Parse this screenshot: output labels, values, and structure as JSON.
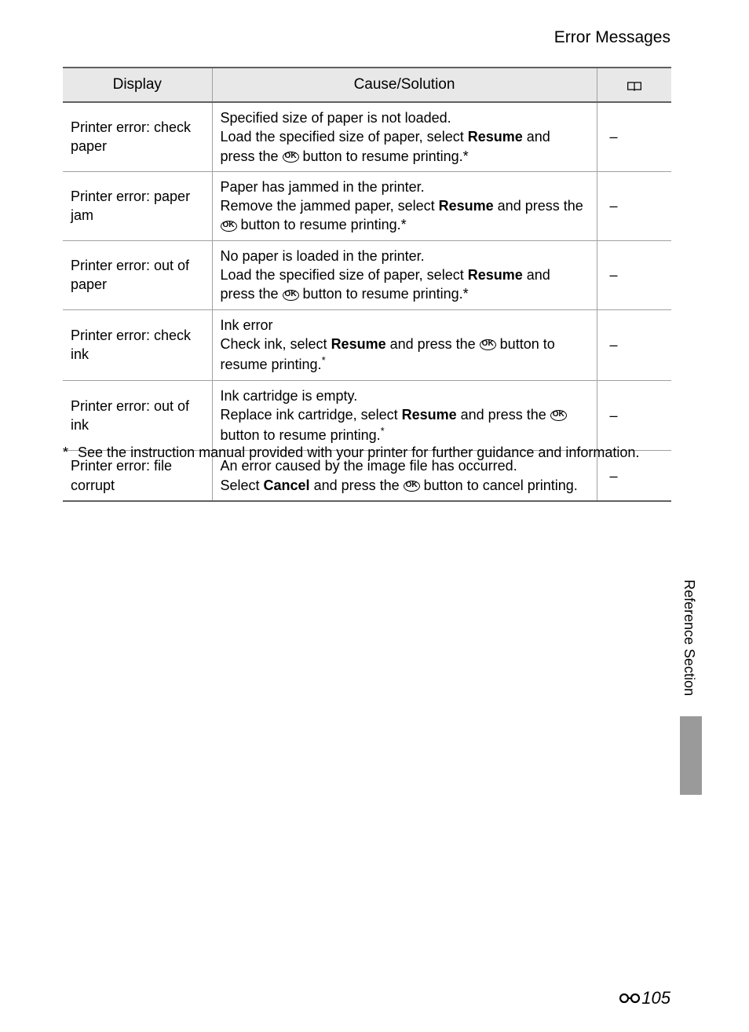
{
  "header": {
    "title": "Error Messages"
  },
  "table": {
    "headers": {
      "display": "Display",
      "cause": "Cause/Solution",
      "reference": ""
    },
    "rows": [
      {
        "display": "Printer error: check paper",
        "cause_html": "Specified size of paper is not loaded.<br>Load the specified size of paper, select <span class='bold'>Resume</span> and press the <span class='ok-button'>OK</span> button to resume printing.*",
        "reference": "–"
      },
      {
        "display": "Printer error: paper jam",
        "cause_html": "Paper has jammed in the printer.<br>Remove the jammed paper, select <span class='bold'>Resume</span> and press the <span class='ok-button'>OK</span> button to resume printing.*",
        "reference": "–"
      },
      {
        "display": "Printer error: out of paper",
        "cause_html": "No paper is loaded in the printer.<br>Load the specified size of paper, select <span class='bold'>Resume</span> and press the <span class='ok-button'>OK</span> button to resume printing.*",
        "reference": "–"
      },
      {
        "display": "Printer error: check ink",
        "cause_html": "Ink error<br>Check ink, select <span class='bold'>Resume</span> and press the <span class='ok-button'>OK</span> button to resume printing.<span class='asterisk-sup'>*</span>",
        "reference": "–"
      },
      {
        "display": "Printer error: out of ink",
        "cause_html": "Ink cartridge is empty.<br>Replace ink cartridge, select <span class='bold'>Resume</span> and press the <span class='ok-button'>OK</span> button to resume printing.<span class='asterisk-sup'>*</span>",
        "reference": "–"
      },
      {
        "display": "Printer error: file corrupt",
        "cause_html": "An error caused by the image file has occurred.<br>Select <span class='bold'>Cancel</span> and press the <span class='ok-button'>OK</span> button to cancel printing.",
        "reference": "–"
      }
    ]
  },
  "footnote": {
    "marker": "*",
    "text": "See the instruction manual provided with your printer for further guidance and information."
  },
  "side": {
    "label": "Reference Section"
  },
  "page": {
    "number": "105"
  }
}
